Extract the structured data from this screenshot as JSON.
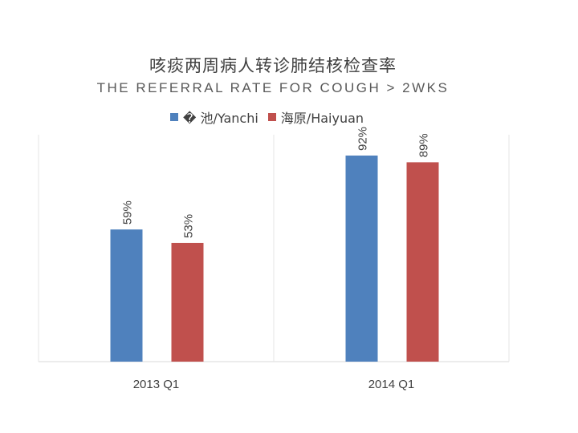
{
  "chart_data": {
    "type": "bar",
    "title": "咳痰两周病人转诊肺结核检查率",
    "subtitle": "THE REFERRAL RATE FOR COUGH > 2WKS",
    "categories": [
      "2013 Q1",
      "2014  Q1"
    ],
    "series": [
      {
        "name": "� 池/Yanchi",
        "color": "#4f81bd",
        "values": [
          59,
          92
        ],
        "labels": [
          "59%",
          "92%"
        ]
      },
      {
        "name": "海原/Haiyuan",
        "color": "#c0504d",
        "values": [
          53,
          89
        ],
        "labels": [
          "53%",
          "89%"
        ]
      }
    ],
    "ylim": [
      0,
      100
    ],
    "grid": false,
    "legend": "top-center"
  }
}
